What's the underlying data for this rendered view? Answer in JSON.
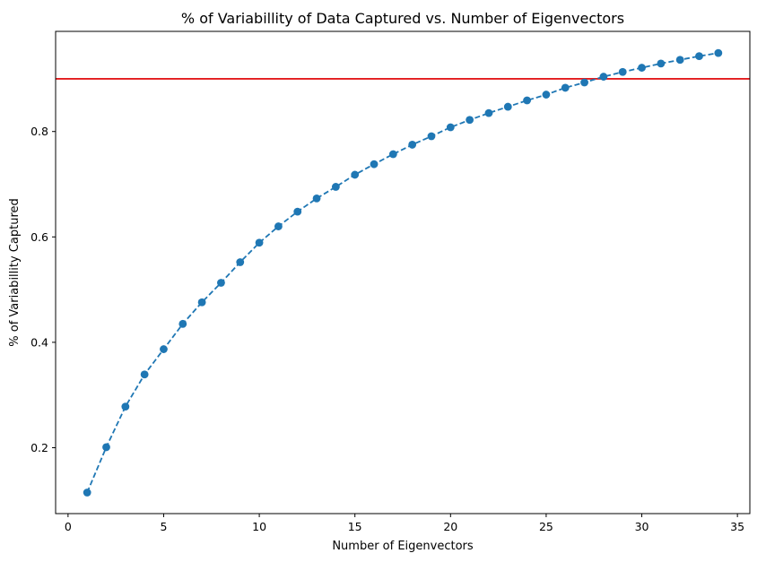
{
  "chart_data": {
    "type": "line",
    "title": "% of Variabillity of Data Captured vs. Number of Eigenvectors",
    "xlabel": "Number of Eigenvectors",
    "ylabel": "% of Variabillity Captured",
    "xlim": [
      -0.65,
      35.65
    ],
    "ylim": [
      0.075,
      0.99
    ],
    "xticks": [
      0,
      5,
      10,
      15,
      20,
      25,
      30,
      35
    ],
    "yticks": [
      0.2,
      0.4,
      0.6,
      0.8
    ],
    "grid": false,
    "series": [
      {
        "line_style": "dashed",
        "marker": "circle",
        "color": "#1f77b4",
        "x": [
          1,
          2,
          3,
          4,
          5,
          6,
          7,
          8,
          9,
          10,
          11,
          12,
          13,
          14,
          15,
          16,
          17,
          18,
          19,
          20,
          21,
          22,
          23,
          24,
          25,
          26,
          27,
          28,
          29,
          30,
          31,
          32,
          33,
          34
        ],
        "y": [
          0.115,
          0.201,
          0.278,
          0.339,
          0.387,
          0.435,
          0.476,
          0.513,
          0.552,
          0.589,
          0.62,
          0.648,
          0.673,
          0.695,
          0.718,
          0.738,
          0.757,
          0.775,
          0.791,
          0.808,
          0.822,
          0.835,
          0.847,
          0.859,
          0.87,
          0.883,
          0.893,
          0.904,
          0.913,
          0.921,
          0.929,
          0.936,
          0.943,
          0.949
        ]
      }
    ],
    "reference_line": {
      "orientation": "horizontal",
      "y": 0.9,
      "color": "#e31a1c"
    }
  }
}
